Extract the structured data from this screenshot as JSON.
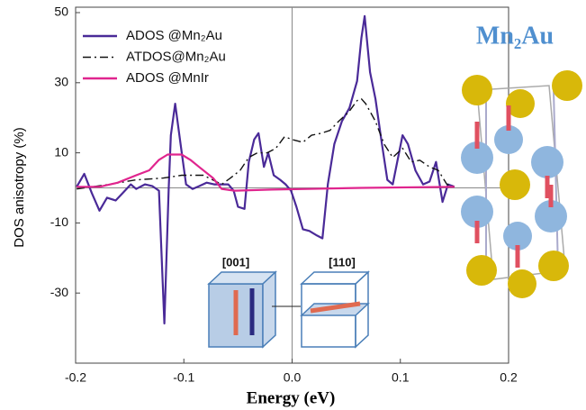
{
  "chart_data": {
    "type": "line",
    "xlabel": "Energy  (eV)",
    "ylabel": "DOS anisotropy  (%)",
    "xlim": [
      -0.2,
      0.2
    ],
    "ylim": [
      -50,
      50
    ],
    "xticks": [
      -0.2,
      -0.1,
      {
        "value": 0,
        "label": "0.0"
      },
      0.1,
      0.2
    ],
    "yticks": [
      -30,
      -10,
      10,
      30,
      50
    ],
    "legend": "upper left",
    "annotations": [
      "Mn₂Au",
      "[001]",
      "[110]"
    ],
    "series": [
      {
        "name": "ADOS @Mn₂Au",
        "color": "#4a2a98",
        "dash": "solid",
        "x": [
          -0.199,
          -0.192,
          -0.185,
          -0.178,
          -0.171,
          -0.163,
          -0.156,
          -0.149,
          -0.144,
          -0.136,
          -0.129,
          -0.123,
          -0.118,
          -0.114,
          -0.112,
          -0.108,
          -0.103,
          -0.098,
          -0.092,
          -0.086,
          -0.079,
          -0.072,
          -0.066,
          -0.059,
          -0.054,
          -0.05,
          -0.044,
          -0.04,
          -0.035,
          -0.031,
          -0.026,
          -0.022,
          -0.017,
          -0.011,
          -0.006,
          -0.001,
          0.004,
          0.01,
          0.016,
          0.023,
          0.028,
          0.033,
          0.039,
          0.046,
          0.053,
          0.06,
          0.064,
          0.067,
          0.072,
          0.077,
          0.083,
          0.088,
          0.093,
          0.102,
          0.107,
          0.114,
          0.121,
          0.127,
          0.133,
          0.139,
          0.144,
          0.15
        ],
        "values": [
          0.3,
          4,
          -1.5,
          -6.5,
          -2.8,
          -3.6,
          -1.3,
          1,
          -0.3,
          1,
          0.5,
          -0.8,
          -38.7,
          -0.3,
          15,
          24,
          12.5,
          1,
          -0.3,
          0.5,
          1.5,
          1,
          1,
          1,
          -0.8,
          -5.4,
          -6,
          7.4,
          13.8,
          15.6,
          6,
          10,
          3.6,
          2.3,
          1,
          -0.8,
          -5.4,
          -11.8,
          -12.3,
          -13.6,
          -14.4,
          1,
          12.5,
          19,
          22.8,
          30.5,
          42.8,
          49,
          33,
          25.4,
          12.5,
          2.3,
          1,
          15,
          12.5,
          4.9,
          1,
          1.8,
          7.4,
          -4,
          1,
          0.3
        ]
      },
      {
        "name": "ATDOS@Mn₂Au",
        "color": "#111111",
        "dash": "dashdot",
        "x": [
          -0.199,
          -0.169,
          -0.144,
          -0.119,
          -0.102,
          -0.082,
          -0.065,
          -0.057,
          -0.048,
          -0.04,
          -0.032,
          -0.023,
          -0.015,
          -0.007,
          0,
          0.01,
          0.018,
          0.027,
          0.035,
          0.043,
          0.052,
          0.06,
          0.064,
          0.068,
          0.077,
          0.085,
          0.093,
          0.102,
          0.11,
          0.118,
          0.127,
          0.135,
          0.143,
          0.15
        ],
        "values": [
          -0.3,
          1,
          2.3,
          2.8,
          3.6,
          3.6,
          1,
          2.8,
          5,
          8.7,
          10,
          10,
          11.3,
          14.6,
          13.8,
          13,
          15,
          15.6,
          16.4,
          19,
          21.5,
          24.9,
          25.4,
          24,
          19,
          12.5,
          8.7,
          11.3,
          7.4,
          7.9,
          6,
          5,
          1,
          0.3
        ]
      },
      {
        "name": "ADOS @MnIr",
        "color": "#e0258e",
        "dash": "solid",
        "x": [
          -0.199,
          -0.178,
          -0.161,
          -0.144,
          -0.132,
          -0.123,
          -0.115,
          -0.102,
          -0.094,
          -0.086,
          -0.073,
          -0.065,
          -0.053,
          -0.019,
          0.014,
          0.064,
          0.15
        ],
        "values": [
          0.3,
          0.3,
          1.5,
          3.6,
          5,
          8,
          9.5,
          9.5,
          8,
          6,
          2.8,
          -0.3,
          -0.8,
          -0.5,
          -0.3,
          0,
          0.3
        ]
      }
    ]
  }
}
